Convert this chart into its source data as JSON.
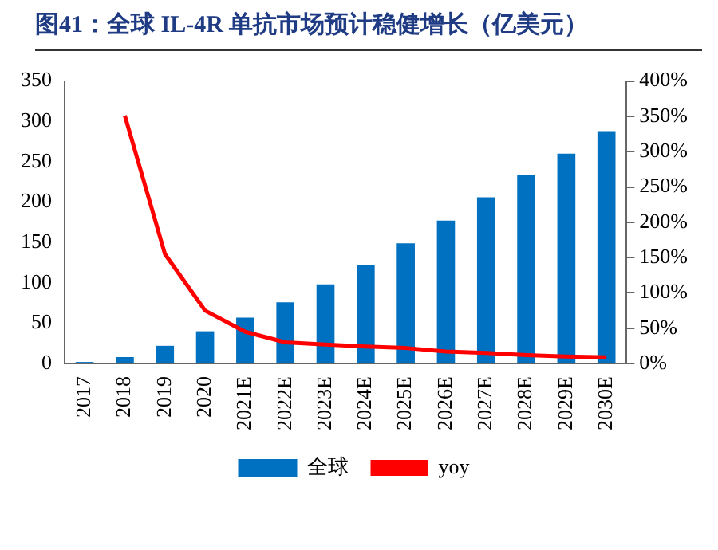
{
  "chart_data": {
    "type": "bar",
    "title": "图41：全球 IL-4R 单抗市场预计稳健增长（亿美元）",
    "categories": [
      "2017",
      "2018",
      "2019",
      "2020",
      "2021E",
      "2022E",
      "2023E",
      "2024E",
      "2025E",
      "2026E",
      "2027E",
      "2028E",
      "2029E",
      "2030E"
    ],
    "series": [
      {
        "name": "全球",
        "color": "#0070c0",
        "values": [
          2,
          8,
          22,
          40,
          57,
          76,
          98,
          122,
          149,
          177,
          206,
          233,
          260,
          288
        ]
      },
      {
        "name": "yoy",
        "type": "line",
        "axis": "y2",
        "color": "#ff0000",
        "values": [
          null,
          351,
          155,
          75,
          45,
          30,
          27,
          24,
          22,
          17,
          15,
          12,
          10,
          9
        ]
      }
    ],
    "ylim": [
      0,
      350
    ],
    "yticks": [
      0,
      50,
      100,
      150,
      200,
      250,
      300,
      350
    ],
    "y2lim": [
      0,
      400
    ],
    "y2ticks": [
      {
        "value": 0,
        "label": "0%"
      },
      {
        "value": 50,
        "label": "50%"
      },
      {
        "value": 100,
        "label": "100%"
      },
      {
        "value": 150,
        "label": "150%"
      },
      {
        "value": 200,
        "label": "200%"
      },
      {
        "value": 250,
        "label": "250%"
      },
      {
        "value": 300,
        "label": "300%"
      },
      {
        "value": 350,
        "label": "350%"
      },
      {
        "value": 400,
        "label": "400%"
      }
    ],
    "grid": false,
    "legend": "bottom",
    "marker": "none",
    "line_style": "solid"
  }
}
